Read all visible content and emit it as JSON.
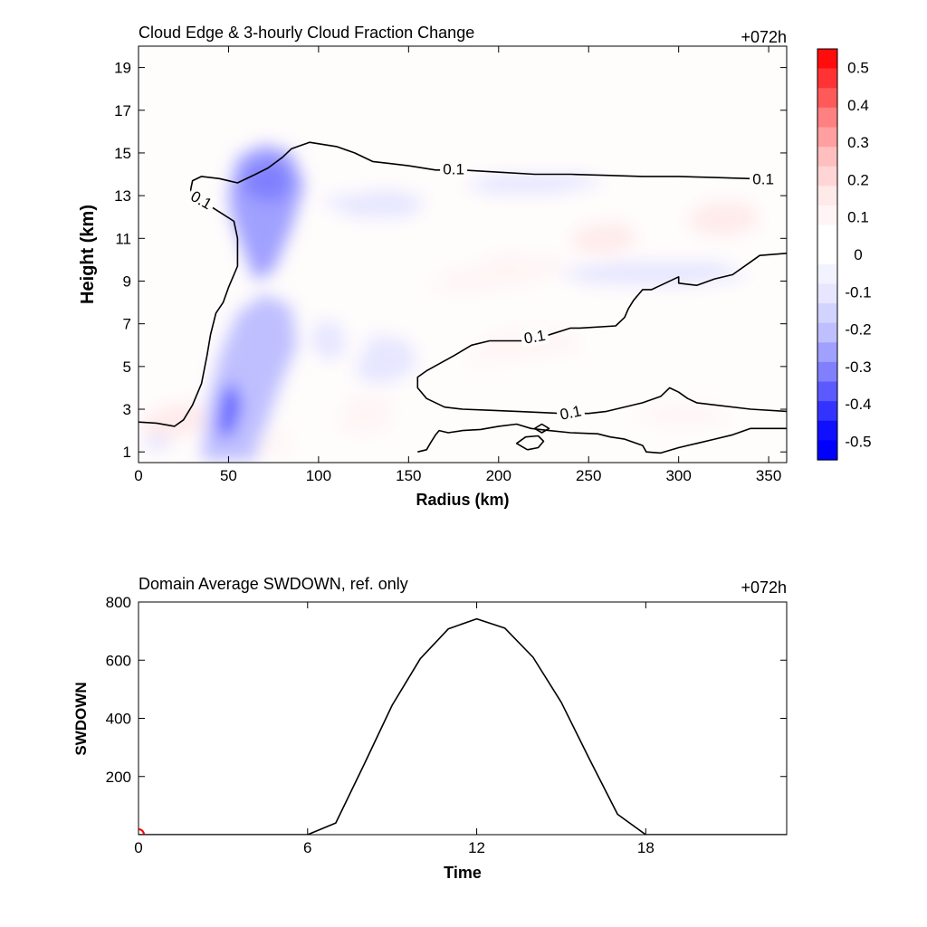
{
  "chart_data": [
    {
      "type": "contour",
      "title": "Cloud Edge & 3-hourly Cloud Fraction Change",
      "time_label": "+072h",
      "xlabel": "Radius (km)",
      "ylabel": "Height (km)",
      "xlim": [
        0,
        360
      ],
      "ylim": [
        0.5,
        20
      ],
      "xticks": [
        0,
        50,
        100,
        150,
        200,
        250,
        300,
        350
      ],
      "yticks": [
        1,
        3,
        5,
        7,
        9,
        11,
        13,
        15,
        17,
        19
      ],
      "contour_label": "0.1",
      "contour_level": 0.1,
      "colorbar": {
        "ticks": [
          "0.5",
          "0.4",
          "0.3",
          "0.2",
          "0.1",
          "0",
          "-0.1",
          "-0.2",
          "-0.3",
          "-0.4",
          "-0.5"
        ],
        "range": [
          -0.55,
          0.55
        ],
        "colors": [
          "#ff0d0d",
          "#ff3333",
          "#ff5a5a",
          "#ff8080",
          "#ff9f9f",
          "#ffbfbf",
          "#ffd5d5",
          "#ffeaea",
          "#fff5f5",
          "#ffffff",
          "#ffffff",
          "#f3f3ff",
          "#e6e6ff",
          "#d3d3ff",
          "#bfbfff",
          "#a0a0ff",
          "#8080ff",
          "#5a5aff",
          "#3333ff",
          "#1010ff",
          "#0000ff"
        ]
      },
      "contours": [
        [
          [
            0,
            2.4
          ],
          [
            10,
            2.35
          ],
          [
            20,
            2.2
          ],
          [
            25,
            2.5
          ],
          [
            30,
            3.2
          ],
          [
            35,
            4.2
          ],
          [
            38,
            5.5
          ],
          [
            40,
            6.5
          ],
          [
            43,
            7.5
          ],
          [
            47,
            8
          ],
          [
            50,
            8.7
          ],
          [
            55,
            9.7
          ],
          [
            55,
            11
          ],
          [
            53,
            11.8
          ],
          [
            40,
            12.5
          ],
          [
            35,
            12.7
          ],
          [
            30,
            12.9
          ],
          [
            29,
            13.3
          ],
          [
            30,
            13.7
          ],
          [
            35,
            13.9
          ],
          [
            45,
            13.8
          ],
          [
            55,
            13.6
          ],
          [
            65,
            14
          ],
          [
            72,
            14.3
          ],
          [
            80,
            14.8
          ],
          [
            85,
            15.2
          ],
          [
            95,
            15.5
          ],
          [
            110,
            15.3
          ],
          [
            120,
            15
          ],
          [
            130,
            14.6
          ],
          [
            140,
            14.5
          ],
          [
            150,
            14.4
          ],
          [
            165,
            14.2
          ],
          [
            180,
            14.2
          ],
          [
            200,
            14.1
          ],
          [
            220,
            14
          ],
          [
            240,
            14
          ],
          [
            260,
            13.95
          ],
          [
            280,
            13.9
          ],
          [
            300,
            13.9
          ],
          [
            320,
            13.85
          ],
          [
            340,
            13.8
          ],
          [
            345,
            13.8
          ]
        ],
        [
          [
            360,
            10.3
          ],
          [
            345,
            10.2
          ],
          [
            340,
            9.9
          ],
          [
            330,
            9.3
          ],
          [
            320,
            9.1
          ],
          [
            310,
            8.8
          ],
          [
            300,
            8.9
          ],
          [
            300,
            9.2
          ],
          [
            290,
            8.8
          ],
          [
            285,
            8.6
          ],
          [
            280,
            8.6
          ],
          [
            275,
            8.1
          ],
          [
            272,
            7.7
          ],
          [
            270,
            7.3
          ],
          [
            265,
            6.9
          ],
          [
            245,
            6.8
          ],
          [
            240,
            6.8
          ],
          [
            225,
            6.4
          ],
          [
            215,
            6.2
          ],
          [
            195,
            6.2
          ],
          [
            185,
            6
          ],
          [
            175,
            5.5
          ],
          [
            160,
            4.8
          ],
          [
            155,
            4.5
          ],
          [
            155,
            4
          ],
          [
            160,
            3.5
          ],
          [
            170,
            3.1
          ],
          [
            180,
            3
          ],
          [
            195,
            2.95
          ],
          [
            210,
            2.9
          ],
          [
            235,
            2.8
          ],
          [
            250,
            2.8
          ],
          [
            260,
            2.9
          ],
          [
            280,
            3.3
          ],
          [
            290,
            3.6
          ],
          [
            295,
            4
          ],
          [
            300,
            3.8
          ],
          [
            305,
            3.5
          ],
          [
            310,
            3.3
          ],
          [
            320,
            3.2
          ],
          [
            340,
            3
          ],
          [
            360,
            2.9
          ]
        ],
        [
          [
            360,
            2.1
          ],
          [
            350,
            2.1
          ],
          [
            340,
            2.1
          ],
          [
            330,
            1.8
          ],
          [
            320,
            1.6
          ],
          [
            310,
            1.4
          ],
          [
            300,
            1.2
          ],
          [
            290,
            0.95
          ],
          [
            282,
            1
          ],
          [
            280,
            1.3
          ],
          [
            270,
            1.6
          ],
          [
            262,
            1.7
          ],
          [
            255,
            1.85
          ],
          [
            240,
            1.9
          ],
          [
            228,
            2
          ],
          [
            218,
            2.1
          ],
          [
            210,
            2.3
          ],
          [
            200,
            2.2
          ],
          [
            190,
            2.05
          ],
          [
            180,
            2
          ],
          [
            172,
            1.9
          ],
          [
            167,
            2
          ],
          [
            165,
            1.8
          ],
          [
            162,
            1.4
          ],
          [
            160,
            1.1
          ],
          [
            155,
            1
          ]
        ],
        [
          [
            216,
            1.1
          ],
          [
            210,
            1.4
          ],
          [
            215,
            1.7
          ],
          [
            222,
            1.75
          ],
          [
            225,
            1.5
          ],
          [
            222,
            1.2
          ],
          [
            216,
            1.1
          ]
        ],
        [
          [
            220,
            2.1
          ],
          [
            224,
            2.3
          ],
          [
            228,
            2.1
          ],
          [
            224,
            1.9
          ],
          [
            220,
            2.1
          ]
        ]
      ]
    },
    {
      "type": "line",
      "title": "Domain Average SWDOWN, ref. only",
      "time_label": "+072h",
      "xlabel": "Time",
      "ylabel": "SWDOWN",
      "xlim": [
        0,
        23
      ],
      "ylim": [
        0,
        800
      ],
      "xticks": [
        0,
        6,
        12,
        18
      ],
      "yticks": [
        200,
        400,
        600,
        800
      ],
      "series": [
        {
          "x": [
            0,
            6,
            7,
            8,
            9,
            10,
            11,
            12,
            13,
            14,
            15,
            16,
            17,
            18,
            23
          ],
          "y": [
            0,
            0,
            40,
            240,
            445,
            605,
            708,
            742,
            710,
            610,
            455,
            260,
            70,
            0,
            0
          ],
          "color": "#000000"
        }
      ],
      "marker": {
        "x": 0,
        "y": 0,
        "color": "#ff0000"
      }
    }
  ]
}
